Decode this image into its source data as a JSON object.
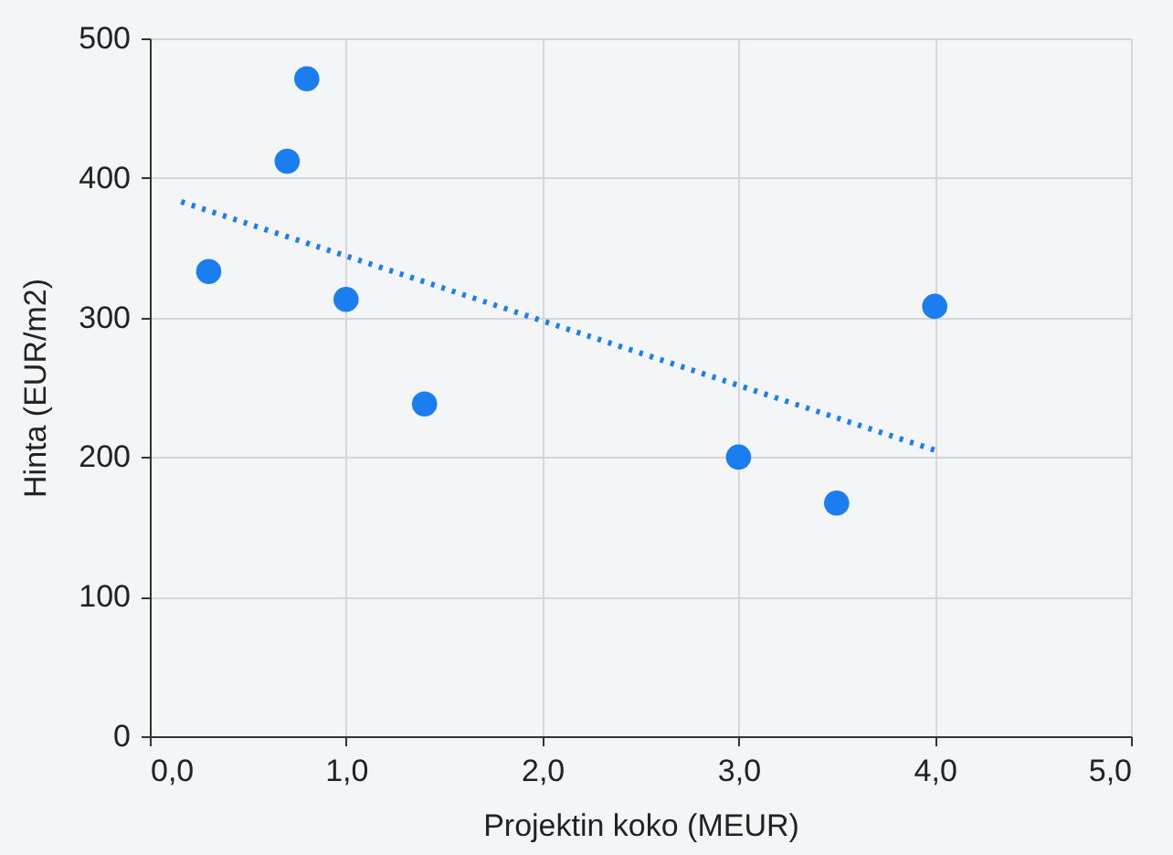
{
  "chart_data": {
    "type": "scatter",
    "xlabel": "Projektin koko (MEUR)",
    "ylabel": "Hinta (EUR/m2)",
    "xlim": [
      0,
      5
    ],
    "ylim": [
      0,
      500
    ],
    "xticks": [
      {
        "value": 0,
        "label": "0,0"
      },
      {
        "value": 1,
        "label": "1,0"
      },
      {
        "value": 2,
        "label": "2,0"
      },
      {
        "value": 3,
        "label": "3,0"
      },
      {
        "value": 4,
        "label": "4,0"
      },
      {
        "value": 5,
        "label": "5,0"
      }
    ],
    "yticks": [
      0,
      100,
      200,
      300,
      400,
      500
    ],
    "grid": true,
    "series": [
      {
        "marker": "circle",
        "color": "#1a7ef0",
        "x": [
          0.3,
          0.7,
          0.8,
          1.0,
          1.4,
          3.0,
          3.5,
          4.0
        ],
        "values": [
          333,
          412,
          471,
          313,
          238,
          200,
          167,
          308
        ]
      },
      {
        "type": "line",
        "color": "#1a7ef0",
        "line_style": "dotted",
        "marker": "none",
        "x": [
          0.16,
          4.0
        ],
        "values": [
          383,
          205
        ]
      }
    ]
  }
}
